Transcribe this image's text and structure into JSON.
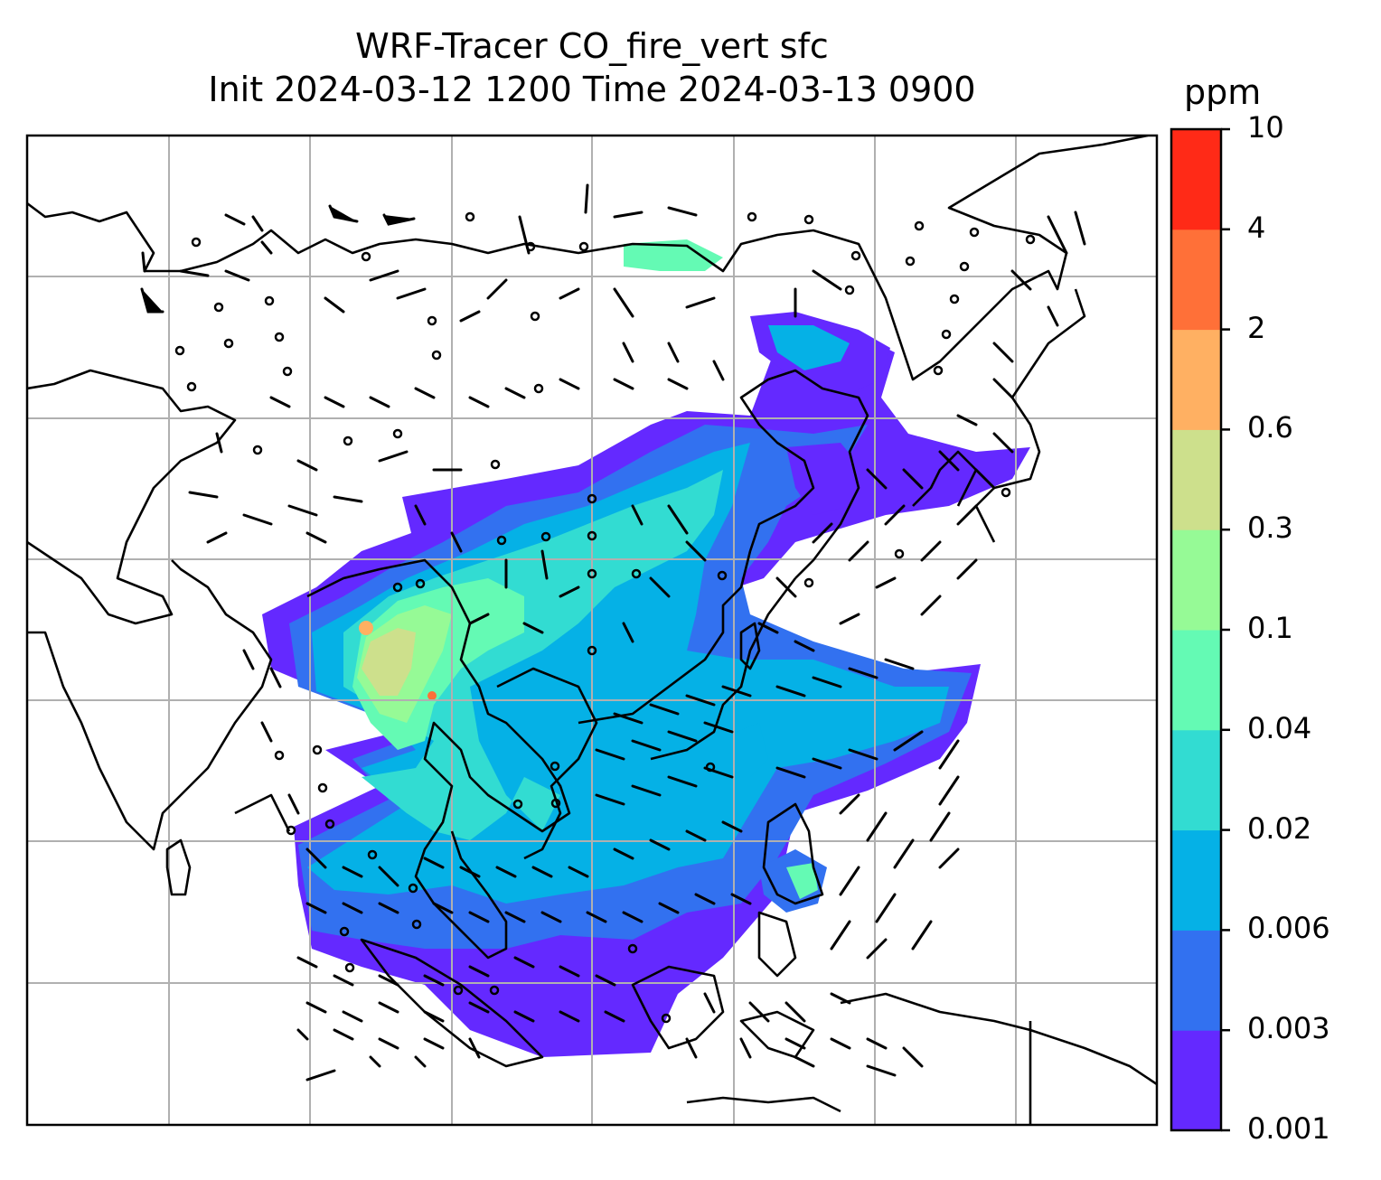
{
  "title": {
    "line1": "WRF-Tracer CO_fire_vert sfc",
    "line2": "Init 2024-03-12 1200 Time 2024-03-13 0900"
  },
  "colorbar": {
    "unit": "ppm",
    "levels": [
      "0.001",
      "0.003",
      "0.006",
      "0.02",
      "0.04",
      "0.1",
      "0.3",
      "0.6",
      "2",
      "4",
      "10"
    ],
    "colors": [
      "#6429ff",
      "#3271f0",
      "#05b1e6",
      "#32dcd2",
      "#64fab4",
      "#96fa96",
      "#cde08c",
      "#ffb062",
      "#ff7038",
      "#ff2a17"
    ]
  },
  "map": {
    "field": "CO_fire_vert",
    "level": "sfc",
    "gridlines": true,
    "overlay": "wind barbs",
    "coastline_color": "#000000"
  }
}
